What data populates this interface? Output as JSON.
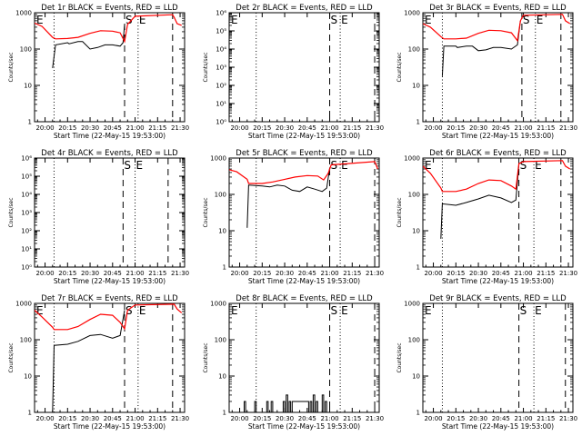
{
  "figure": {
    "background": "#ffffff",
    "axis_color": "#000000",
    "events_color": "#000000",
    "lld_color": "#ff0000"
  },
  "chart_data": [
    {
      "type": "line",
      "title": "Det 1r BLACK = Events, RED = LLD",
      "xlabel": "Start Time (22-May-15 19:53:00)",
      "ylabel": "Counts/sec",
      "xlim": [
        "19:53",
        "21:33"
      ],
      "ylim": [
        1,
        1000
      ],
      "yscale": "log",
      "xticks": [
        "20:00",
        "20:15",
        "20:30",
        "20:45",
        "21:00",
        "21:15",
        "21:30"
      ],
      "yticks": [
        "1",
        "10",
        "100",
        "1000"
      ],
      "markers": [
        {
          "time": "20:06",
          "style": "dotted"
        },
        {
          "time": "20:53",
          "style": "dashed",
          "label": "S"
        },
        {
          "time": "21:02",
          "style": "dotted",
          "label": "E"
        },
        {
          "time": "21:25",
          "style": "dashed"
        }
      ],
      "corner_label": "E",
      "series": [
        {
          "role": "events",
          "x": [
            "20:05",
            "20:07",
            "20:15",
            "20:16",
            "20:22",
            "20:25",
            "20:30",
            "20:35",
            "20:40",
            "20:45",
            "20:50",
            "20:52",
            "20:53"
          ],
          "y": [
            30,
            130,
            150,
            140,
            160,
            160,
            100,
            110,
            130,
            130,
            120,
            150,
            480
          ]
        },
        {
          "role": "lld",
          "x": [
            "19:53",
            "19:58",
            "20:05",
            "20:07",
            "20:15",
            "20:22",
            "20:30",
            "20:37",
            "20:45",
            "20:50",
            "20:53",
            "20:55",
            "21:00",
            "21:25",
            "21:26",
            "21:28",
            "21:31"
          ],
          "y": [
            520,
            420,
            210,
            190,
            195,
            210,
            270,
            320,
            310,
            280,
            160,
            480,
            800,
            880,
            750,
            500,
            450
          ]
        }
      ]
    },
    {
      "type": "line",
      "title": "Det 2r BLACK = Events, RED = LLD",
      "xlabel": "Start Time (22-May-15 19:53:00)",
      "ylabel": "Counts/sec",
      "xlim": [
        "19:53",
        "21:33"
      ],
      "ylim": [
        1,
        1000000
      ],
      "yscale": "log",
      "xticks": [
        "20:00",
        "20:15",
        "20:30",
        "20:45",
        "21:00",
        "21:15",
        "21:30"
      ],
      "yticks": [
        "10⁰",
        "10¹",
        "10²",
        "10³",
        "10⁴",
        "10⁵",
        "10⁶"
      ],
      "markers": [
        {
          "time": "20:11",
          "style": "dotted"
        },
        {
          "time": "21:00",
          "style": "dashed",
          "label": "S"
        },
        {
          "time": "21:07",
          "style": "dotted",
          "label": "E"
        },
        {
          "time": "21:30",
          "style": "dashed"
        }
      ],
      "corner_label": "E",
      "series": []
    },
    {
      "type": "line",
      "title": "Det 3r BLACK = Events, RED = LLD",
      "xlabel": "Start Time (22-May-15 19:53:00)",
      "ylabel": "Counts/sec",
      "xlim": [
        "19:53",
        "21:33"
      ],
      "ylim": [
        1,
        1000
      ],
      "yscale": "log",
      "xticks": [
        "20:00",
        "20:15",
        "20:30",
        "20:45",
        "21:00",
        "21:15",
        "21:30"
      ],
      "yticks": [
        "1",
        "10",
        "100",
        "1000"
      ],
      "markers": [
        {
          "time": "20:06",
          "style": "dotted"
        },
        {
          "time": "20:59",
          "style": "dashed",
          "label": "S"
        },
        {
          "time": "21:08",
          "style": "dotted",
          "label": "E"
        },
        {
          "time": "21:25",
          "style": "dashed"
        }
      ],
      "corner_label": "E",
      "series": [
        {
          "role": "events",
          "x": [
            "20:06",
            "20:07",
            "20:15",
            "20:16",
            "20:22",
            "20:26",
            "20:30",
            "20:35",
            "20:40",
            "20:45",
            "20:52",
            "20:56",
            "20:58"
          ],
          "y": [
            18,
            120,
            120,
            110,
            120,
            120,
            90,
            95,
            110,
            110,
            100,
            130,
            600
          ]
        },
        {
          "role": "lld",
          "x": [
            "19:53",
            "19:58",
            "20:05",
            "20:07",
            "20:15",
            "20:22",
            "20:30",
            "20:37",
            "20:45",
            "20:52",
            "20:56",
            "20:58",
            "21:00",
            "21:26",
            "21:28",
            "21:31"
          ],
          "y": [
            500,
            400,
            220,
            190,
            190,
            200,
            270,
            330,
            320,
            280,
            170,
            600,
            850,
            900,
            600,
            500
          ]
        }
      ]
    },
    {
      "type": "line",
      "title": "Det 4r BLACK = Events, RED = LLD",
      "xlabel": "Start Time (22-May-15 19:53:00)",
      "ylabel": "Counts/sec",
      "xlim": [
        "19:53",
        "21:33"
      ],
      "ylim": [
        1,
        1000000
      ],
      "yscale": "log",
      "xticks": [
        "20:00",
        "20:15",
        "20:30",
        "20:45",
        "21:00",
        "21:15",
        "21:30"
      ],
      "yticks": [
        "10⁰",
        "10¹",
        "10²",
        "10³",
        "10⁴",
        "10⁵",
        "10⁶"
      ],
      "markers": [
        {
          "time": "20:06",
          "style": "dotted"
        },
        {
          "time": "20:52",
          "style": "dashed",
          "label": "S"
        },
        {
          "time": "21:00",
          "style": "dotted",
          "label": "E"
        },
        {
          "time": "21:22",
          "style": "dashed"
        }
      ],
      "corner_label": "",
      "series": []
    },
    {
      "type": "line",
      "title": "Det 5r BLACK = Events, RED = LLD",
      "xlabel": "Start Time (22-May-15 19:53:00)",
      "ylabel": "Counts/sec",
      "xlim": [
        "19:53",
        "21:33"
      ],
      "ylim": [
        1,
        1000
      ],
      "yscale": "log",
      "xticks": [
        "20:00",
        "20:15",
        "20:30",
        "20:45",
        "21:00",
        "21:15",
        "21:30"
      ],
      "yticks": [
        "1",
        "10",
        "100",
        "1000"
      ],
      "markers": [
        {
          "time": "20:11",
          "style": "dotted"
        },
        {
          "time": "21:00",
          "style": "dashed",
          "label": "S"
        },
        {
          "time": "21:07",
          "style": "dotted",
          "label": "E"
        },
        {
          "time": "21:30",
          "style": "dashed"
        }
      ],
      "corner_label": "",
      "series": [
        {
          "role": "events",
          "x": [
            "20:05",
            "20:06",
            "20:15",
            "20:20",
            "20:25",
            "20:30",
            "20:35",
            "20:40",
            "20:45",
            "20:50",
            "20:55",
            "20:58",
            "21:00"
          ],
          "y": [
            12,
            180,
            170,
            160,
            180,
            170,
            130,
            120,
            160,
            140,
            120,
            150,
            550
          ]
        },
        {
          "role": "lld",
          "x": [
            "19:53",
            "19:58",
            "20:05",
            "20:06",
            "20:15",
            "20:22",
            "20:30",
            "20:37",
            "20:45",
            "20:52",
            "20:56",
            "20:59",
            "21:01",
            "21:30",
            "21:32"
          ],
          "y": [
            480,
            420,
            260,
            200,
            200,
            220,
            260,
            300,
            330,
            320,
            250,
            380,
            650,
            800,
            500
          ]
        }
      ]
    },
    {
      "type": "line",
      "title": "Det 6r BLACK = Events, RED = LLD",
      "xlabel": "Start Time (22-May-15 19:53:00)",
      "ylabel": "Counts/sec",
      "xlim": [
        "19:53",
        "21:33"
      ],
      "ylim": [
        1,
        1000
      ],
      "yscale": "log",
      "xticks": [
        "20:00",
        "20:15",
        "20:30",
        "20:45",
        "21:00",
        "21:15",
        "21:30"
      ],
      "yticks": [
        "1",
        "10",
        "100",
        "1000"
      ],
      "markers": [
        {
          "time": "20:06",
          "style": "dotted"
        },
        {
          "time": "20:57",
          "style": "dashed",
          "label": "S"
        },
        {
          "time": "21:07",
          "style": "dotted",
          "label": "E"
        },
        {
          "time": "21:25",
          "style": "dashed"
        }
      ],
      "corner_label": "E",
      "series": [
        {
          "role": "events",
          "x": [
            "20:05",
            "20:06",
            "20:15",
            "20:22",
            "20:30",
            "20:37",
            "20:45",
            "20:52",
            "20:55",
            "20:57"
          ],
          "y": [
            6,
            55,
            50,
            60,
            75,
            95,
            80,
            60,
            70,
            650
          ]
        },
        {
          "role": "lld",
          "x": [
            "19:53",
            "19:58",
            "20:05",
            "20:06",
            "20:15",
            "20:22",
            "20:30",
            "20:37",
            "20:45",
            "20:52",
            "20:55",
            "20:57",
            "21:00",
            "21:26",
            "21:28",
            "21:31"
          ],
          "y": [
            600,
            380,
            150,
            120,
            120,
            140,
            200,
            250,
            240,
            170,
            140,
            700,
            800,
            850,
            600,
            500
          ]
        }
      ]
    },
    {
      "type": "line",
      "title": "Det 7r BLACK = Events, RED = LLD",
      "xlabel": "Start Time (22-May-15 19:53:00)",
      "ylabel": "Counts/sec",
      "xlim": [
        "19:53",
        "21:33"
      ],
      "ylim": [
        1,
        1000
      ],
      "yscale": "log",
      "xticks": [
        "20:00",
        "20:15",
        "20:30",
        "20:45",
        "21:00",
        "21:15",
        "21:30"
      ],
      "yticks": [
        "1",
        "10",
        "100",
        "1000"
      ],
      "markers": [
        {
          "time": "20:06",
          "style": "dotted"
        },
        {
          "time": "20:53",
          "style": "dashed",
          "label": "S"
        },
        {
          "time": "21:02",
          "style": "dotted",
          "label": "E"
        },
        {
          "time": "21:25",
          "style": "dashed"
        }
      ],
      "corner_label": "E",
      "series": [
        {
          "role": "events",
          "x": [
            "20:05",
            "20:06",
            "20:15",
            "20:22",
            "20:30",
            "20:37",
            "20:45",
            "20:50",
            "20:53"
          ],
          "y": [
            1,
            70,
            75,
            90,
            130,
            140,
            110,
            130,
            650
          ]
        },
        {
          "role": "lld",
          "x": [
            "19:53",
            "19:58",
            "20:05",
            "20:06",
            "20:15",
            "20:22",
            "20:30",
            "20:37",
            "20:45",
            "20:50",
            "20:53",
            "20:55",
            "21:00",
            "21:26",
            "21:28",
            "21:31"
          ],
          "y": [
            650,
            420,
            220,
            190,
            190,
            230,
            360,
            500,
            470,
            300,
            200,
            650,
            900,
            950,
            700,
            550
          ]
        }
      ]
    },
    {
      "type": "line",
      "title": "Det 8r BLACK = Events, RED = LLD",
      "xlabel": "Start Time (22-May-15 19:53:00)",
      "ylabel": "Counts/sec",
      "xlim": [
        "19:53",
        "21:33"
      ],
      "ylim": [
        1,
        1000
      ],
      "yscale": "log",
      "xticks": [
        "20:00",
        "20:15",
        "20:30",
        "20:45",
        "21:00",
        "21:15",
        "21:30"
      ],
      "yticks": [
        "1",
        "10",
        "100",
        "1000"
      ],
      "markers": [
        {
          "time": "20:11",
          "style": "dotted"
        },
        {
          "time": "21:00",
          "style": "dashed",
          "label": "S"
        },
        {
          "time": "21:07",
          "style": "dotted",
          "label": "E"
        },
        {
          "time": "21:30",
          "style": "dashed"
        }
      ],
      "corner_label": "E",
      "series": [
        {
          "role": "events",
          "x": [
            "20:00",
            "20:03",
            "20:03",
            "20:04",
            "20:04",
            "20:10",
            "20:10",
            "20:11",
            "20:11",
            "20:18",
            "20:18",
            "20:19",
            "20:19",
            "20:21",
            "20:21",
            "20:22",
            "20:22",
            "20:29",
            "20:29",
            "20:30",
            "20:30",
            "20:31",
            "20:31",
            "20:32",
            "20:32",
            "20:33",
            "20:33",
            "20:34",
            "20:34",
            "20:35",
            "20:35",
            "20:46",
            "20:46",
            "20:47",
            "20:47",
            "20:48",
            "20:48",
            "20:49",
            "20:49",
            "20:50",
            "20:50",
            "20:51",
            "20:51",
            "20:52",
            "20:52",
            "20:55",
            "20:55",
            "20:56",
            "20:56",
            "20:57",
            "20:57",
            "20:58",
            "20:58"
          ],
          "y": [
            1,
            1,
            2,
            2,
            1,
            1,
            2,
            2,
            1,
            1,
            2,
            2,
            1,
            1,
            2,
            2,
            1,
            1,
            2,
            2,
            1,
            1,
            3,
            3,
            1,
            1,
            2,
            2,
            1,
            1,
            2,
            2,
            1,
            1,
            2,
            2,
            1,
            1,
            3,
            3,
            1,
            1,
            2,
            2,
            1,
            1,
            3,
            3,
            1,
            1,
            2,
            2,
            1
          ]
        },
        {
          "role": "lld",
          "x": [],
          "y": []
        }
      ]
    },
    {
      "type": "line",
      "title": "Det 9r BLACK = Events, RED = LLD",
      "xlabel": "Start Time (22-May-15 19:53:00)",
      "ylabel": "Counts/sec",
      "xlim": [
        "19:53",
        "21:33"
      ],
      "ylim": [
        1,
        1000
      ],
      "yscale": "log",
      "xticks": [
        "20:00",
        "20:15",
        "20:30",
        "20:45",
        "21:00",
        "21:15",
        "21:30"
      ],
      "yticks": [
        "1",
        "10",
        "100",
        "1000"
      ],
      "markers": [
        {
          "time": "20:06",
          "style": "dotted"
        },
        {
          "time": "20:57",
          "style": "dashed",
          "label": "S"
        },
        {
          "time": "21:07",
          "style": "dotted",
          "label": "E"
        },
        {
          "time": "21:28",
          "style": "dashed"
        }
      ],
      "corner_label": "E",
      "series": []
    }
  ]
}
